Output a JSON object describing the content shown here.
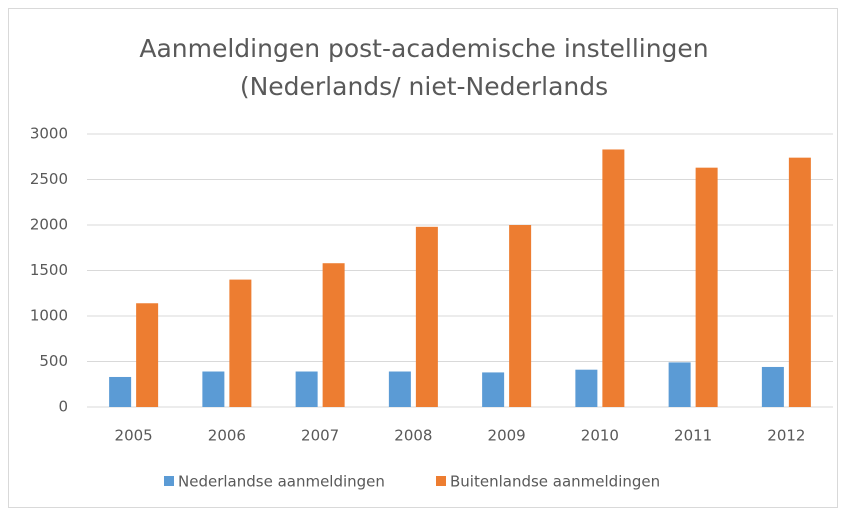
{
  "chart_data": {
    "type": "bar",
    "title": [
      "Aanmeldingen post-academische instellingen",
      "(Nederlands/ niet-Nederlands"
    ],
    "categories": [
      "2005",
      "2006",
      "2007",
      "2008",
      "2009",
      "2010",
      "2011",
      "2012"
    ],
    "series": [
      {
        "name": "Nederlandse aanmeldingen",
        "color": "#5b9bd5",
        "values": [
          330,
          390,
          390,
          390,
          380,
          410,
          490,
          440
        ]
      },
      {
        "name": "Buitenlandse aanmeldingen",
        "color": "#ed7d31",
        "values": [
          1140,
          1400,
          1580,
          1980,
          2000,
          2830,
          2630,
          2740
        ]
      }
    ],
    "ylim": [
      0,
      3000
    ],
    "yticks": [
      0,
      500,
      1000,
      1500,
      2000,
      2500,
      3000
    ],
    "grid": true,
    "legend": "bottom"
  }
}
